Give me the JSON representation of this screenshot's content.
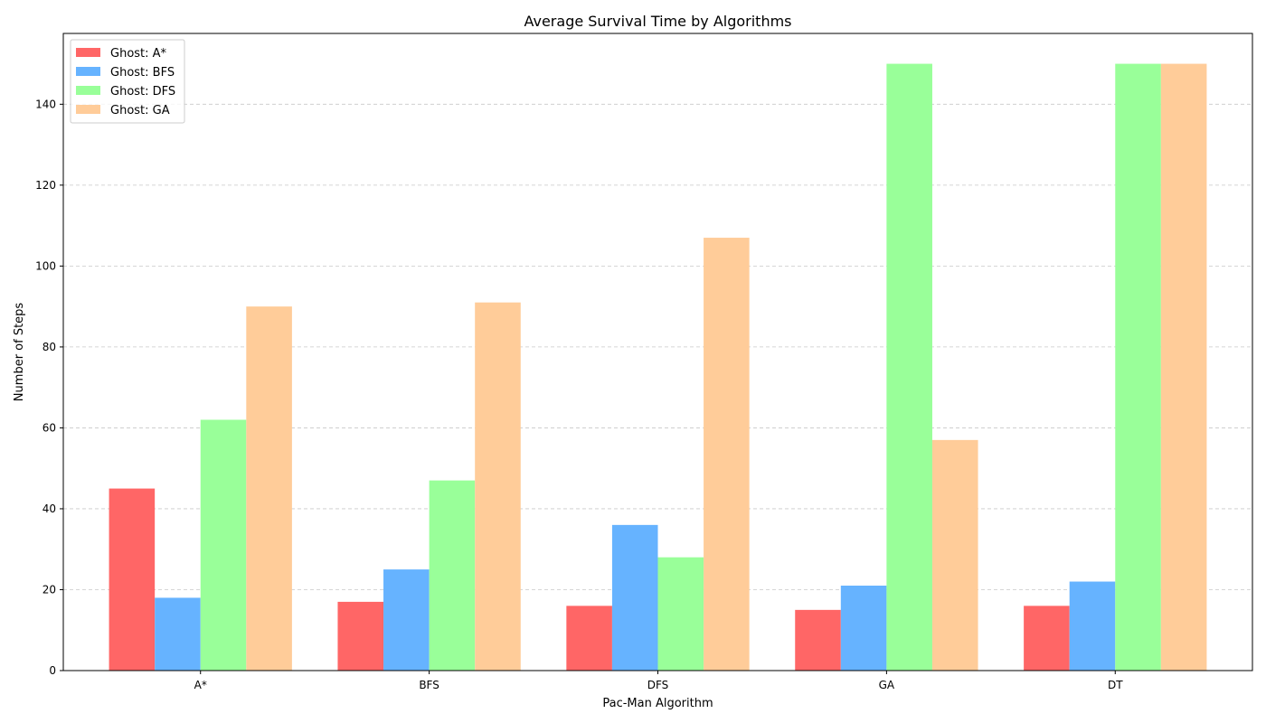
{
  "chart_data": {
    "type": "bar",
    "title": "Average Survival Time by Algorithms",
    "xlabel": "Pac-Man Algorithm",
    "ylabel": "Number of Steps",
    "categories": [
      "A*",
      "BFS",
      "DFS",
      "GA",
      "DT"
    ],
    "series": [
      {
        "name": "Ghost: A*",
        "color": "#ff6666",
        "values": [
          45,
          17,
          16,
          15,
          16
        ]
      },
      {
        "name": "Ghost: BFS",
        "color": "#66b3ff",
        "values": [
          18,
          25,
          36,
          21,
          22
        ]
      },
      {
        "name": "Ghost: DFS",
        "color": "#99ff99",
        "values": [
          62,
          47,
          28,
          150,
          150
        ]
      },
      {
        "name": "Ghost: GA",
        "color": "#ffcc99",
        "values": [
          90,
          91,
          107,
          57,
          150
        ]
      }
    ],
    "ylim": [
      0,
      157.5
    ],
    "yticks": [
      0,
      20,
      40,
      60,
      80,
      100,
      120,
      140
    ],
    "grid": "y-dashed",
    "legend_position": "top-left"
  }
}
